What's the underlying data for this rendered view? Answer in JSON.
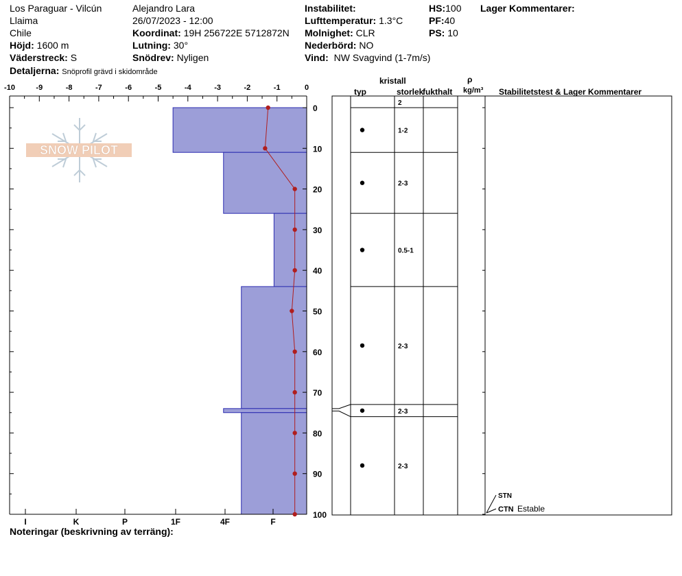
{
  "header": {
    "location": "Los Paraguar - Vilcún",
    "range": "Llaima",
    "country": "Chile",
    "elevation_label": "Höjd:",
    "elevation": "1600 m",
    "aspect_label": "Väderstreck:",
    "aspect": "S",
    "details_label": "Detaljerna:",
    "details": "Snöprofil grävd i skidområde",
    "observer": "Alejandro Lara",
    "datetime": "26/07/2023 - 12:00",
    "coord_label": "Koordinat:",
    "coord": "19H 256722E 5712872N",
    "slope_label": "Lutning:",
    "slope": "30°",
    "drift_label": "Snödrev:",
    "drift": "Nyligen",
    "instability_label": "Instabilitet:",
    "airtemp_label": "Lufttemperatur:",
    "airtemp": "1.3°C",
    "sky_label": "Molnighet:",
    "sky": "CLR",
    "precip_label": "Nederbörd:",
    "precip": "NO",
    "wind_label": "Vind:",
    "wind": "NW Svagvind (1-7m/s)",
    "hs_label": "HS:",
    "hs": "100",
    "pf_label": "PF:",
    "pf": "40",
    "ps_label": "PS:",
    "ps": "10",
    "layer_comments_label": "Lager Kommentarer:"
  },
  "columns": {
    "crystal": "kristall",
    "type": "typ",
    "size": "storlek",
    "moisture": "fukthalt",
    "rho": "ρ",
    "density_unit": "kg/m³",
    "stability": "Stabilitetstest & Lager Kommentarer"
  },
  "notes_label": "Noteringar (beskrivning av terräng):",
  "logo_text": "SNOW PILOT",
  "chart_data": {
    "type": "snow_profile",
    "temp_axis": {
      "min": -10,
      "max": 0,
      "ticks": [
        "-10",
        "-9",
        "-8",
        "-7",
        "-6",
        "-5",
        "-4",
        "-3",
        "-2",
        "-1",
        "0"
      ]
    },
    "hardness_axis": {
      "labels": [
        "I",
        "K",
        "P",
        "1F",
        "4F",
        "F"
      ]
    },
    "depth_axis": {
      "min": 0,
      "max": 100,
      "ticks": [
        "0",
        "10",
        "20",
        "30",
        "40",
        "50",
        "60",
        "70",
        "80",
        "90",
        "100"
      ]
    },
    "hardness_layers": [
      {
        "top": 0,
        "bottom": 11,
        "temp_equivalent": -4.5
      },
      {
        "top": 11,
        "bottom": 26,
        "temp_equivalent": -2.8
      },
      {
        "top": 26,
        "bottom": 44,
        "temp_equivalent": -1.1
      },
      {
        "top": 44,
        "bottom": 74,
        "temp_equivalent": -2.2
      },
      {
        "top": 74,
        "bottom": 75,
        "temp_equivalent": -2.8
      },
      {
        "top": 75,
        "bottom": 100,
        "temp_equivalent": -2.2
      }
    ],
    "temperature_profile": [
      {
        "depth": 0,
        "temp": -1.3
      },
      {
        "depth": 10,
        "temp": -1.4
      },
      {
        "depth": 20,
        "temp": -0.4
      },
      {
        "depth": 30,
        "temp": -0.4
      },
      {
        "depth": 40,
        "temp": -0.4
      },
      {
        "depth": 50,
        "temp": -0.5
      },
      {
        "depth": 60,
        "temp": -0.4
      },
      {
        "depth": 70,
        "temp": -0.4
      },
      {
        "depth": 80,
        "temp": -0.4
      },
      {
        "depth": 90,
        "temp": -0.4
      },
      {
        "depth": 100,
        "temp": -0.4
      }
    ],
    "layers": [
      {
        "top": 0,
        "bottom": 0,
        "size": "2",
        "grain": false
      },
      {
        "top": 0,
        "bottom": 11,
        "size": "1-2",
        "grain": true
      },
      {
        "top": 11,
        "bottom": 26,
        "size": "2-3",
        "grain": true
      },
      {
        "top": 26,
        "bottom": 44,
        "size": "0.5-1",
        "grain": true
      },
      {
        "top": 44,
        "bottom": 73,
        "size": "2-3",
        "grain": true
      },
      {
        "top": 73,
        "bottom": 76,
        "size": "2-3",
        "grain": true
      },
      {
        "top": 76,
        "bottom": 100,
        "size": "2-3",
        "grain": true
      }
    ],
    "stability_tests": [
      {
        "label": "STN",
        "text": ""
      },
      {
        "label": "CTN",
        "text": "Estable"
      }
    ]
  }
}
